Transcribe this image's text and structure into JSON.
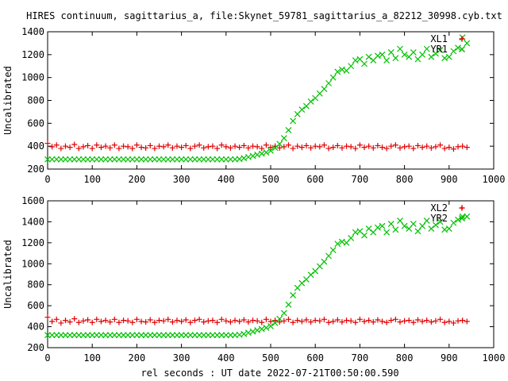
{
  "title": "HIRES continuum, sagittarius_a, file:Skynet_59781_sagittarius_a_82212_30998.cyb.txt",
  "xlabel": "rel seconds : UT date 2022-07-21T00:50:00.590",
  "colors": {
    "series_a": "#e00000",
    "series_b": "#00c000",
    "axes": "#000000"
  },
  "chart_data": [
    {
      "type": "scatter",
      "ylabel": "Uncalibrated",
      "xlim": [
        0,
        1000
      ],
      "ylim": [
        200,
        1400
      ],
      "xticks": [
        "0",
        "100",
        "200",
        "300",
        "400",
        "500",
        "600",
        "700",
        "800",
        "900",
        "1000"
      ],
      "yticks": [
        "200",
        "400",
        "600",
        "800",
        "1000",
        "1200",
        "1400"
      ],
      "legend_position": "top-right",
      "series": [
        {
          "name": "XL1",
          "marker": "plus",
          "color": "#e00000",
          "x": [
            0,
            10,
            20,
            30,
            40,
            50,
            60,
            70,
            80,
            90,
            100,
            110,
            120,
            130,
            140,
            150,
            160,
            170,
            180,
            190,
            200,
            210,
            220,
            230,
            240,
            250,
            260,
            270,
            280,
            290,
            300,
            310,
            320,
            330,
            340,
            350,
            360,
            370,
            380,
            390,
            400,
            410,
            420,
            430,
            440,
            450,
            460,
            470,
            480,
            490,
            500,
            510,
            520,
            530,
            540,
            550,
            560,
            570,
            580,
            590,
            600,
            610,
            620,
            630,
            640,
            650,
            660,
            670,
            680,
            690,
            700,
            710,
            720,
            730,
            740,
            750,
            760,
            770,
            780,
            790,
            800,
            810,
            820,
            830,
            840,
            850,
            860,
            870,
            880,
            890,
            900,
            910,
            920,
            930,
            940
          ],
          "y": [
            425,
            395,
            410,
            380,
            400,
            390,
            415,
            380,
            395,
            405,
            380,
            410,
            390,
            400,
            385,
            410,
            380,
            400,
            395,
            380,
            410,
            390,
            385,
            405,
            380,
            400,
            395,
            410,
            385,
            400,
            390,
            405,
            380,
            400,
            410,
            385,
            395,
            400,
            380,
            410,
            395,
            385,
            400,
            390,
            405,
            385,
            400,
            395,
            380,
            410,
            390,
            400,
            385,
            395,
            410,
            380,
            400,
            390,
            405,
            385,
            400,
            395,
            410,
            380,
            390,
            405,
            385,
            400,
            395,
            380,
            410,
            390,
            400,
            385,
            405,
            390,
            380,
            400,
            410,
            385,
            395,
            400,
            380,
            405,
            390,
            400,
            385,
            395,
            410,
            380,
            390,
            375,
            395,
            400,
            390
          ]
        },
        {
          "name": "YR1",
          "marker": "cross",
          "color": "#00c000",
          "x": [
            0,
            10,
            20,
            30,
            40,
            50,
            60,
            70,
            80,
            90,
            100,
            110,
            120,
            130,
            140,
            150,
            160,
            170,
            180,
            190,
            200,
            210,
            220,
            230,
            240,
            250,
            260,
            270,
            280,
            290,
            300,
            310,
            320,
            330,
            340,
            350,
            360,
            370,
            380,
            390,
            400,
            410,
            420,
            430,
            440,
            450,
            460,
            470,
            480,
            490,
            500,
            510,
            520,
            530,
            540,
            550,
            560,
            570,
            580,
            590,
            600,
            610,
            620,
            630,
            640,
            650,
            660,
            670,
            680,
            690,
            700,
            710,
            720,
            730,
            740,
            750,
            760,
            770,
            780,
            790,
            800,
            810,
            820,
            830,
            840,
            850,
            860,
            870,
            880,
            890,
            900,
            910,
            920,
            930,
            940
          ],
          "y": [
            285,
            285,
            285,
            285,
            285,
            285,
            285,
            285,
            285,
            285,
            285,
            285,
            285,
            285,
            285,
            285,
            285,
            285,
            285,
            285,
            285,
            285,
            285,
            285,
            285,
            285,
            285,
            285,
            285,
            285,
            285,
            285,
            285,
            285,
            285,
            285,
            285,
            285,
            285,
            285,
            285,
            285,
            285,
            288,
            295,
            305,
            315,
            325,
            335,
            345,
            360,
            385,
            420,
            470,
            540,
            620,
            680,
            720,
            750,
            790,
            820,
            860,
            900,
            950,
            1000,
            1050,
            1070,
            1060,
            1100,
            1150,
            1160,
            1120,
            1180,
            1150,
            1190,
            1200,
            1150,
            1220,
            1170,
            1250,
            1200,
            1180,
            1220,
            1160,
            1200,
            1250,
            1180,
            1210,
            1240,
            1170,
            1180,
            1230,
            1260,
            1350,
            1300
          ]
        }
      ]
    },
    {
      "type": "scatter",
      "ylabel": "Uncalibrated",
      "xlim": [
        0,
        1000
      ],
      "ylim": [
        200,
        1600
      ],
      "xticks": [
        "0",
        "100",
        "200",
        "300",
        "400",
        "500",
        "600",
        "700",
        "800",
        "900",
        "1000"
      ],
      "yticks": [
        "200",
        "400",
        "600",
        "800",
        "1000",
        "1200",
        "1400",
        "1600"
      ],
      "legend_position": "top-right",
      "series": [
        {
          "name": "XL2",
          "marker": "plus",
          "color": "#e00000",
          "x": [
            0,
            10,
            20,
            30,
            40,
            50,
            60,
            70,
            80,
            90,
            100,
            110,
            120,
            130,
            140,
            150,
            160,
            170,
            180,
            190,
            200,
            210,
            220,
            230,
            240,
            250,
            260,
            270,
            280,
            290,
            300,
            310,
            320,
            330,
            340,
            350,
            360,
            370,
            380,
            390,
            400,
            410,
            420,
            430,
            440,
            450,
            460,
            470,
            480,
            490,
            500,
            510,
            520,
            530,
            540,
            550,
            560,
            570,
            580,
            590,
            600,
            610,
            620,
            630,
            640,
            650,
            660,
            670,
            680,
            690,
            700,
            710,
            720,
            730,
            740,
            750,
            760,
            770,
            780,
            790,
            800,
            810,
            820,
            830,
            840,
            850,
            860,
            870,
            880,
            890,
            900,
            910,
            920,
            930,
            940
          ],
          "y": [
            490,
            450,
            470,
            435,
            460,
            445,
            475,
            440,
            455,
            465,
            440,
            470,
            450,
            460,
            445,
            470,
            440,
            460,
            455,
            440,
            470,
            450,
            445,
            465,
            440,
            460,
            455,
            470,
            445,
            460,
            450,
            465,
            440,
            460,
            470,
            445,
            455,
            460,
            440,
            470,
            455,
            445,
            460,
            450,
            465,
            445,
            460,
            455,
            440,
            470,
            450,
            460,
            445,
            455,
            470,
            440,
            460,
            450,
            465,
            445,
            460,
            455,
            470,
            440,
            450,
            465,
            445,
            460,
            455,
            440,
            470,
            450,
            460,
            445,
            465,
            450,
            440,
            460,
            470,
            445,
            455,
            460,
            440,
            465,
            450,
            460,
            445,
            455,
            470,
            440,
            450,
            435,
            455,
            460,
            450
          ]
        },
        {
          "name": "YR2",
          "marker": "cross",
          "color": "#00c000",
          "x": [
            0,
            10,
            20,
            30,
            40,
            50,
            60,
            70,
            80,
            90,
            100,
            110,
            120,
            130,
            140,
            150,
            160,
            170,
            180,
            190,
            200,
            210,
            220,
            230,
            240,
            250,
            260,
            270,
            280,
            290,
            300,
            310,
            320,
            330,
            340,
            350,
            360,
            370,
            380,
            390,
            400,
            410,
            420,
            430,
            440,
            450,
            460,
            470,
            480,
            490,
            500,
            510,
            520,
            530,
            540,
            550,
            560,
            570,
            580,
            590,
            600,
            610,
            620,
            630,
            640,
            650,
            660,
            670,
            680,
            690,
            700,
            710,
            720,
            730,
            740,
            750,
            760,
            770,
            780,
            790,
            800,
            810,
            820,
            830,
            840,
            850,
            860,
            870,
            880,
            890,
            900,
            910,
            920,
            930,
            940
          ],
          "y": [
            320,
            320,
            320,
            320,
            320,
            320,
            320,
            320,
            320,
            320,
            320,
            320,
            320,
            320,
            320,
            320,
            320,
            320,
            320,
            320,
            320,
            320,
            320,
            320,
            320,
            320,
            320,
            320,
            320,
            320,
            320,
            320,
            320,
            320,
            320,
            320,
            320,
            320,
            320,
            320,
            320,
            320,
            320,
            323,
            330,
            342,
            354,
            366,
            378,
            390,
            405,
            435,
            475,
            530,
            610,
            700,
            770,
            815,
            850,
            895,
            930,
            975,
            1020,
            1075,
            1130,
            1190,
            1210,
            1200,
            1245,
            1300,
            1310,
            1270,
            1335,
            1300,
            1345,
            1360,
            1300,
            1380,
            1325,
            1410,
            1360,
            1335,
            1380,
            1310,
            1360,
            1410,
            1335,
            1370,
            1400,
            1325,
            1335,
            1390,
            1420,
            1450,
            1450
          ]
        }
      ]
    }
  ]
}
